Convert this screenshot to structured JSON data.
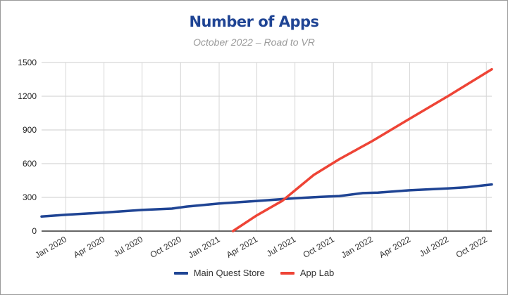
{
  "chart_data": {
    "type": "line",
    "title": "Number of Apps",
    "subtitle": "October 2022 – Road to VR",
    "xlabel": "",
    "ylabel": "",
    "ylim": [
      0,
      1500
    ],
    "yticks": [
      0,
      300,
      600,
      900,
      1200,
      1500
    ],
    "xlim": [
      "2019-11-04",
      "2022-10-14"
    ],
    "xticks": [
      {
        "date": "2020-01-01",
        "label": "Jan 2020"
      },
      {
        "date": "2020-04-01",
        "label": "Apr 2020"
      },
      {
        "date": "2020-07-01",
        "label": "Jul 2020"
      },
      {
        "date": "2020-10-01",
        "label": "Oct 2020"
      },
      {
        "date": "2021-01-01",
        "label": "Jan 2021"
      },
      {
        "date": "2021-04-01",
        "label": "Apr 2021"
      },
      {
        "date": "2021-07-01",
        "label": "Jul 2021"
      },
      {
        "date": "2021-10-01",
        "label": "Oct 2021"
      },
      {
        "date": "2022-01-01",
        "label": "Jan 2022"
      },
      {
        "date": "2022-04-01",
        "label": "Apr 2022"
      },
      {
        "date": "2022-07-01",
        "label": "Jul 2022"
      },
      {
        "date": "2022-10-01",
        "label": "Oct 2022"
      }
    ],
    "grid": true,
    "legend_position": "bottom",
    "series": [
      {
        "name": "Main Quest Store",
        "color": "#1f4494",
        "points": [
          [
            "2019-11-04",
            130
          ],
          [
            "2020-01-01",
            145
          ],
          [
            "2020-04-01",
            165
          ],
          [
            "2020-07-01",
            188
          ],
          [
            "2020-09-10",
            200
          ],
          [
            "2020-10-15",
            218
          ],
          [
            "2021-01-01",
            245
          ],
          [
            "2021-04-01",
            268
          ],
          [
            "2021-07-01",
            292
          ],
          [
            "2021-09-01",
            305
          ],
          [
            "2021-10-15",
            312
          ],
          [
            "2021-12-10",
            338
          ],
          [
            "2022-01-15",
            342
          ],
          [
            "2022-04-01",
            363
          ],
          [
            "2022-07-01",
            380
          ],
          [
            "2022-08-15",
            390
          ],
          [
            "2022-10-14",
            415
          ]
        ]
      },
      {
        "name": "App Lab",
        "color": "#ee4436",
        "points": [
          [
            "2021-02-03",
            0
          ],
          [
            "2021-04-01",
            140
          ],
          [
            "2021-06-01",
            270
          ],
          [
            "2021-07-10",
            390
          ],
          [
            "2021-08-15",
            500
          ],
          [
            "2021-10-15",
            640
          ],
          [
            "2022-01-01",
            800
          ],
          [
            "2022-04-01",
            1000
          ],
          [
            "2022-07-01",
            1200
          ],
          [
            "2022-10-14",
            1440
          ]
        ]
      }
    ]
  }
}
